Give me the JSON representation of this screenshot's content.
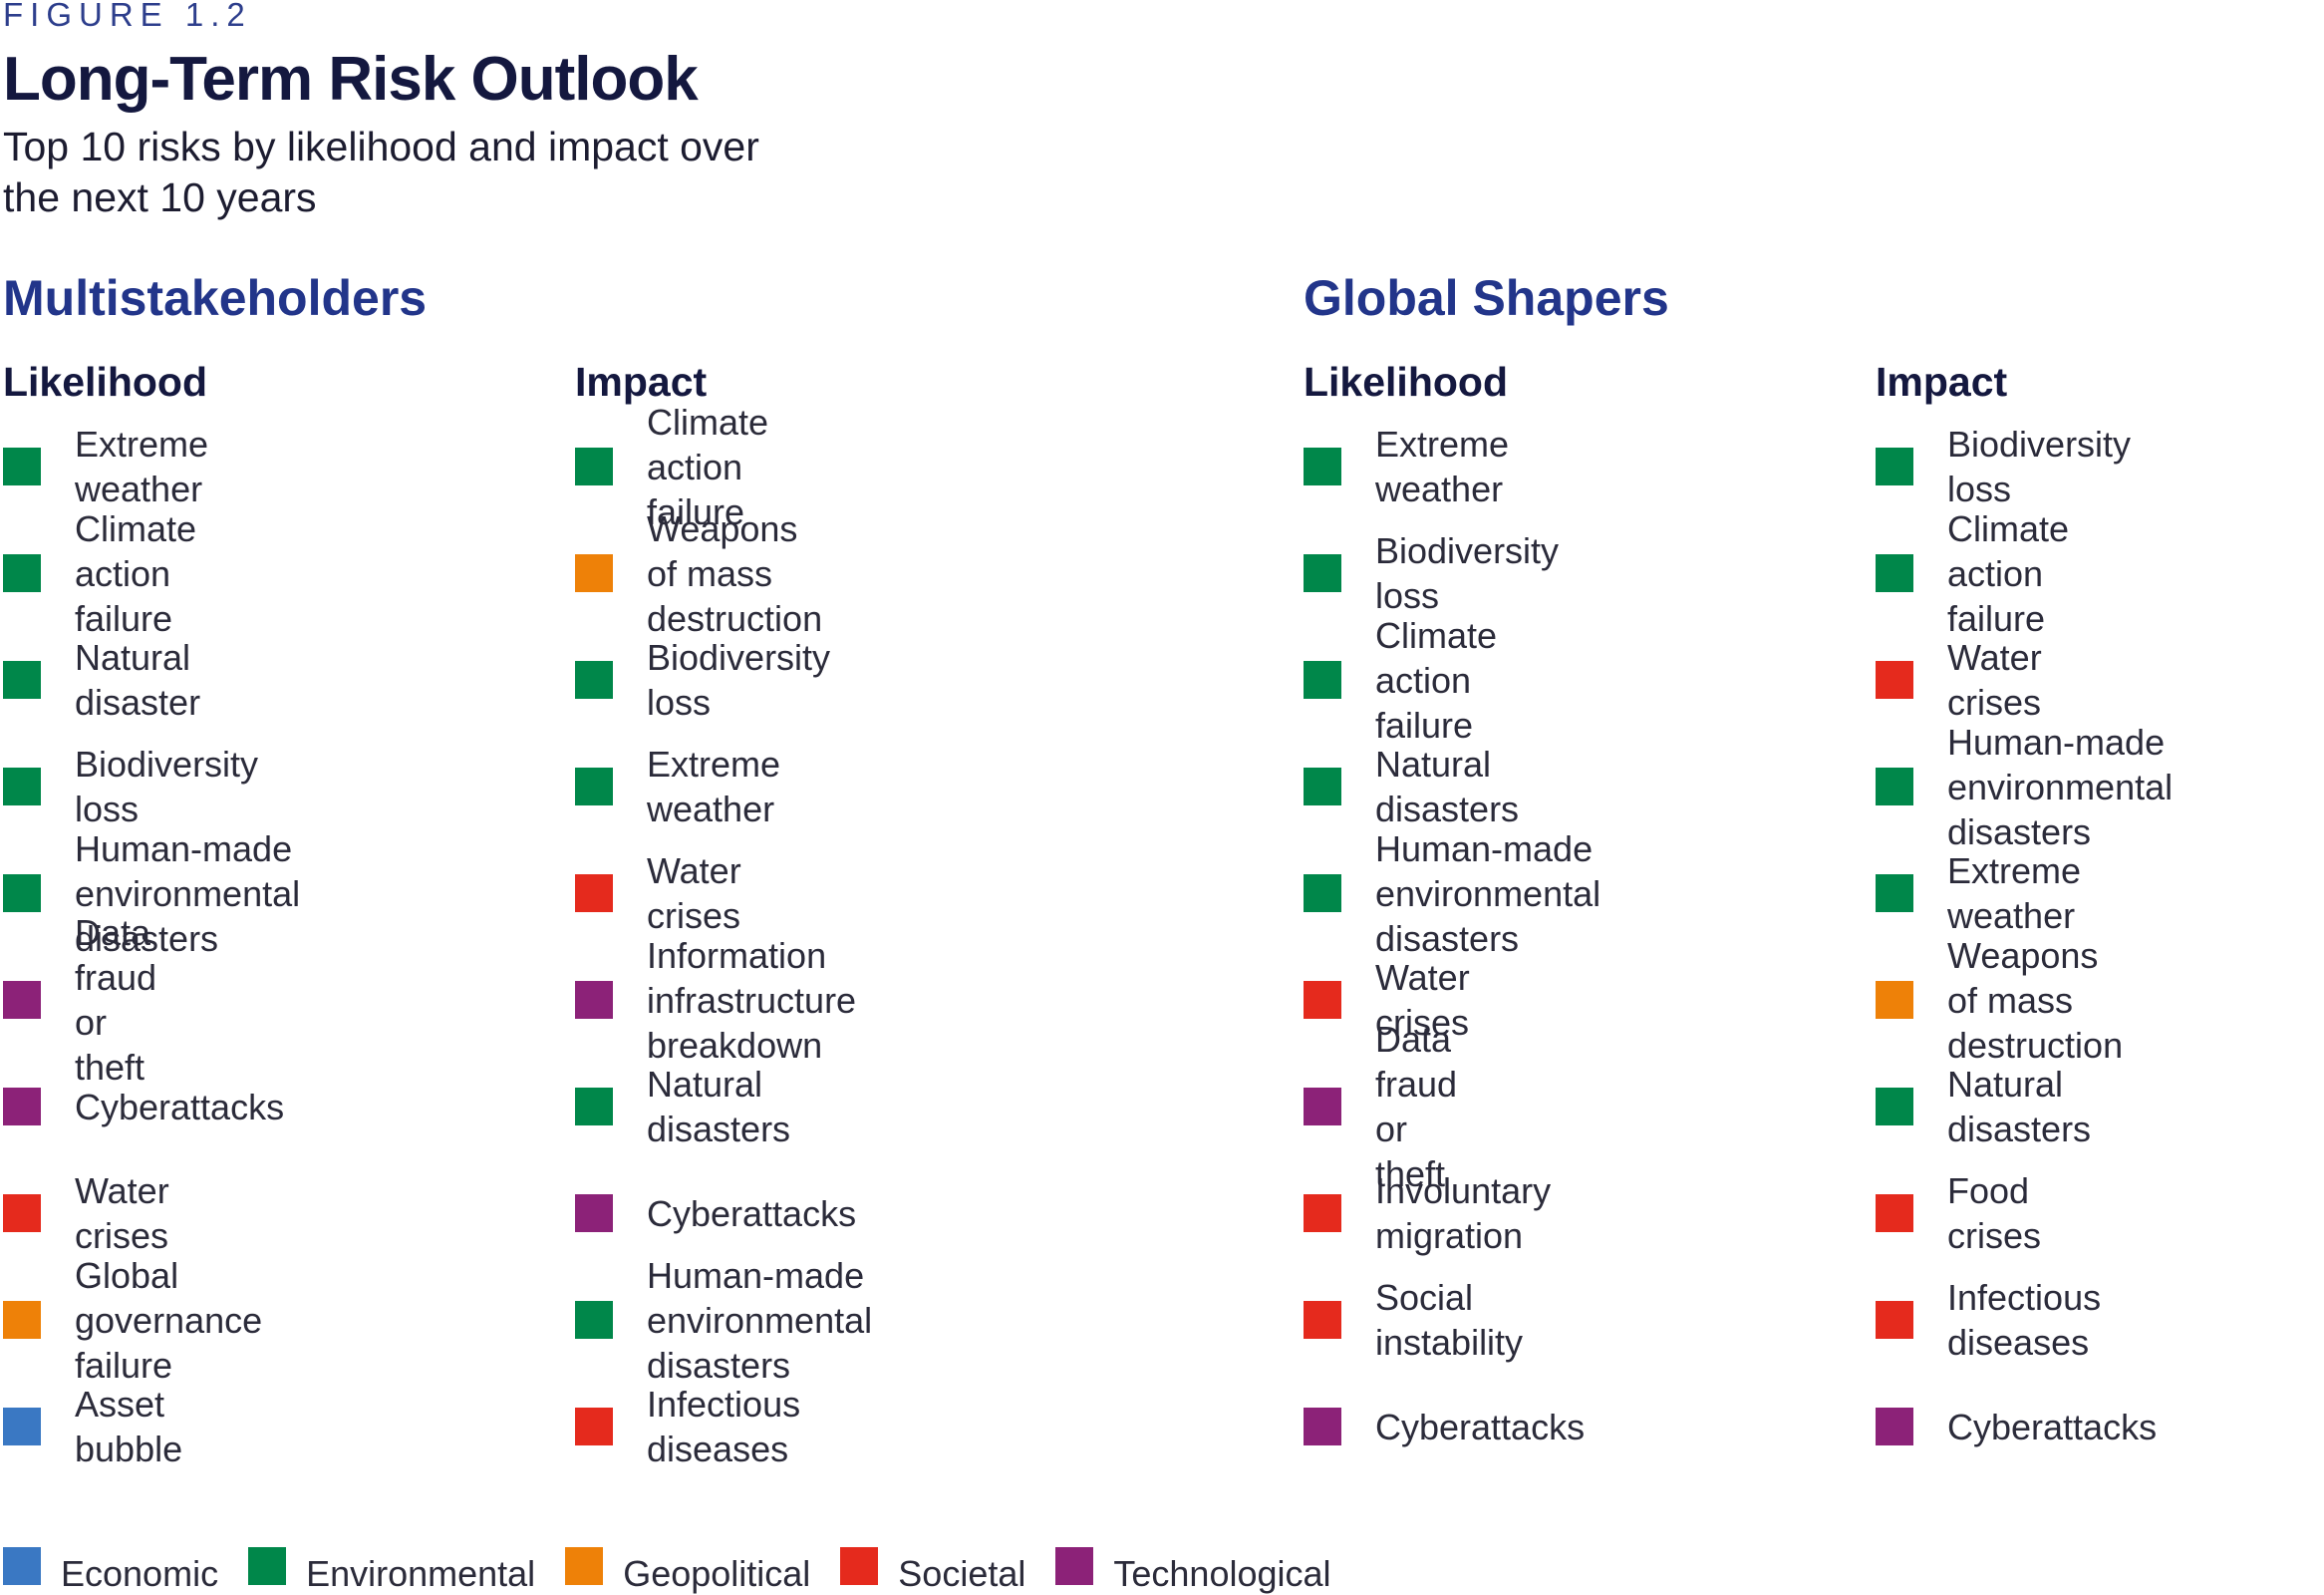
{
  "figure_label": "FIGURE 1.2",
  "title": "Long-Term Risk Outlook",
  "subtitle": "Top 10 risks by likelihood and impact over\nthe next 10 years",
  "categories": {
    "economic": {
      "label": "Economic",
      "color": "#3a78c3"
    },
    "environmental": {
      "label": "Environmental",
      "color": "#00874a"
    },
    "geopolitical": {
      "label": "Geopolitical",
      "color": "#ee8108"
    },
    "societal": {
      "label": "Societal",
      "color": "#e52a1d"
    },
    "technological": {
      "label": "Technological",
      "color": "#8c2278"
    }
  },
  "groups": [
    {
      "name": "Multistakeholders",
      "likelihood": {
        "heading": "Likelihood",
        "items": [
          {
            "label": "Extreme weather",
            "category": "environmental"
          },
          {
            "label": "Climate action failure",
            "category": "environmental"
          },
          {
            "label": "Natural disaster",
            "category": "environmental"
          },
          {
            "label": "Biodiversity loss",
            "category": "environmental"
          },
          {
            "label": "Human-made\nenvironmental disasters",
            "category": "environmental"
          },
          {
            "label": "Data fraud or theft",
            "category": "technological"
          },
          {
            "label": "Cyberattacks",
            "category": "technological"
          },
          {
            "label": "Water crises",
            "category": "societal"
          },
          {
            "label": "Global governance failure",
            "category": "geopolitical"
          },
          {
            "label": "Asset bubble",
            "category": "economic"
          }
        ]
      },
      "impact": {
        "heading": "Impact",
        "items": [
          {
            "label": "Climate action failure",
            "category": "environmental"
          },
          {
            "label": "Weapons of mass\ndestruction",
            "category": "geopolitical"
          },
          {
            "label": "Biodiversity loss",
            "category": "environmental"
          },
          {
            "label": "Extreme weather",
            "category": "environmental"
          },
          {
            "label": "Water crises",
            "category": "societal"
          },
          {
            "label": "Information infrastructure\nbreakdown",
            "category": "technological"
          },
          {
            "label": "Natural disasters",
            "category": "environmental"
          },
          {
            "label": "Cyberattacks",
            "category": "technological"
          },
          {
            "label": "Human-made\nenvironmental disasters",
            "category": "environmental"
          },
          {
            "label": "Infectious diseases",
            "category": "societal"
          }
        ]
      }
    },
    {
      "name": "Global Shapers",
      "likelihood": {
        "heading": "Likelihood",
        "items": [
          {
            "label": "Extreme weather",
            "category": "environmental"
          },
          {
            "label": "Biodiversity loss",
            "category": "environmental"
          },
          {
            "label": "Climate action failure",
            "category": "environmental"
          },
          {
            "label": "Natural disasters",
            "category": "environmental"
          },
          {
            "label": "Human-made\nenvironmental disasters",
            "category": "environmental"
          },
          {
            "label": "Water crises",
            "category": "societal"
          },
          {
            "label": "Data fraud or theft",
            "category": "technological"
          },
          {
            "label": "Involuntary migration",
            "category": "societal"
          },
          {
            "label": "Social instability",
            "category": "societal"
          },
          {
            "label": "Cyberattacks",
            "category": "technological"
          }
        ]
      },
      "impact": {
        "heading": "Impact",
        "items": [
          {
            "label": "Biodiversity loss",
            "category": "environmental"
          },
          {
            "label": "Climate action failure",
            "category": "environmental"
          },
          {
            "label": "Water crises",
            "category": "societal"
          },
          {
            "label": "Human-made\nenvironmental disasters",
            "category": "environmental"
          },
          {
            "label": "Extreme weather",
            "category": "environmental"
          },
          {
            "label": "Weapons of mass\ndestruction",
            "category": "geopolitical"
          },
          {
            "label": "Natural disasters",
            "category": "environmental"
          },
          {
            "label": "Food crises",
            "category": "societal"
          },
          {
            "label": "Infectious diseases",
            "category": "societal"
          },
          {
            "label": "Cyberattacks",
            "category": "technological"
          }
        ]
      }
    }
  ],
  "legend": [
    "economic",
    "environmental",
    "geopolitical",
    "societal",
    "technological"
  ]
}
